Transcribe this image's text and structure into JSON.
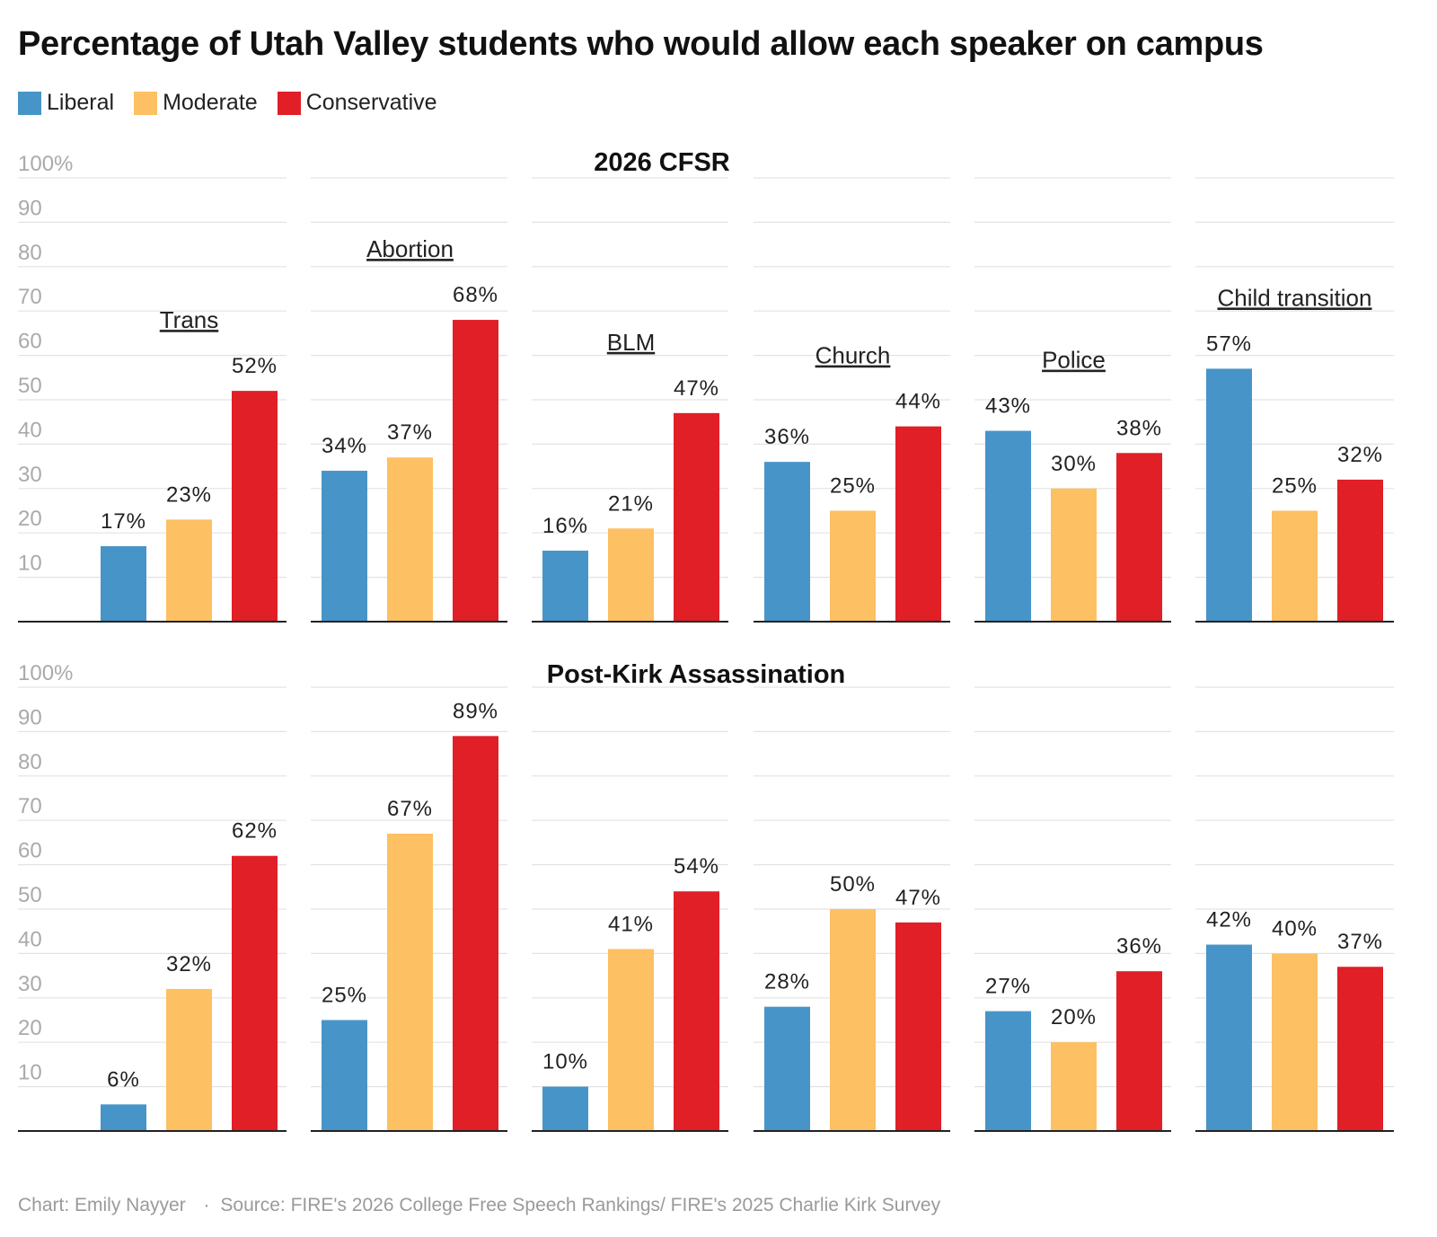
{
  "title": "Percentage of Utah Valley students who would allow each speaker on campus",
  "legend": [
    {
      "label": "Liberal",
      "color": "#4795c8"
    },
    {
      "label": "Moderate",
      "color": "#fdc062"
    },
    {
      "label": "Conservative",
      "color": "#e01f26"
    }
  ],
  "footer": {
    "credit": "Chart: Emily Nayyer",
    "separator": "·",
    "source": "Source: FIRE's 2026 College Free Speech Rankings/ FIRE's 2025 Charlie Kirk Survey"
  },
  "chart_data": {
    "type": "bar",
    "ylim": [
      0,
      100
    ],
    "yticks": [
      {
        "value": 100,
        "label": "100%"
      },
      {
        "value": 90,
        "label": "90"
      },
      {
        "value": 80,
        "label": "80"
      },
      {
        "value": 70,
        "label": "70"
      },
      {
        "value": 60,
        "label": "60"
      },
      {
        "value": 50,
        "label": "50"
      },
      {
        "value": 40,
        "label": "40"
      },
      {
        "value": 30,
        "label": "30"
      },
      {
        "value": 20,
        "label": "20"
      },
      {
        "value": 10,
        "label": "10"
      }
    ],
    "series_names": [
      "Liberal",
      "Moderate",
      "Conservative"
    ],
    "categories": [
      "Trans",
      "Abortion",
      "BLM",
      "Church",
      "Police",
      "Child transition"
    ],
    "rows": [
      {
        "title": "2026 CFSR",
        "values": [
          [
            17,
            23,
            52
          ],
          [
            34,
            37,
            68
          ],
          [
            16,
            21,
            47
          ],
          [
            36,
            25,
            44
          ],
          [
            43,
            30,
            38
          ],
          [
            57,
            25,
            32
          ]
        ],
        "labels": [
          [
            "17%",
            "23%",
            "52%"
          ],
          [
            "34%",
            "37%",
            "68%"
          ],
          [
            "16%",
            "21%",
            "47%"
          ],
          [
            "36%",
            "25%",
            "44%"
          ],
          [
            "43%",
            "30%",
            "38%"
          ],
          [
            "57%",
            "25%",
            "32%"
          ]
        ]
      },
      {
        "title": "Post-Kirk Assassination",
        "values": [
          [
            6,
            32,
            62
          ],
          [
            25,
            67,
            89
          ],
          [
            10,
            41,
            54
          ],
          [
            28,
            50,
            47
          ],
          [
            27,
            20,
            36
          ],
          [
            42,
            40,
            37
          ]
        ],
        "labels": [
          [
            "6%",
            "32%",
            "62%"
          ],
          [
            "25%",
            "67%",
            "89%"
          ],
          [
            "10%",
            "41%",
            "54%"
          ],
          [
            "28%",
            "50%",
            "47%"
          ],
          [
            "27%",
            "20%",
            "36%"
          ],
          [
            "42%",
            "40%",
            "37%"
          ]
        ]
      }
    ]
  }
}
